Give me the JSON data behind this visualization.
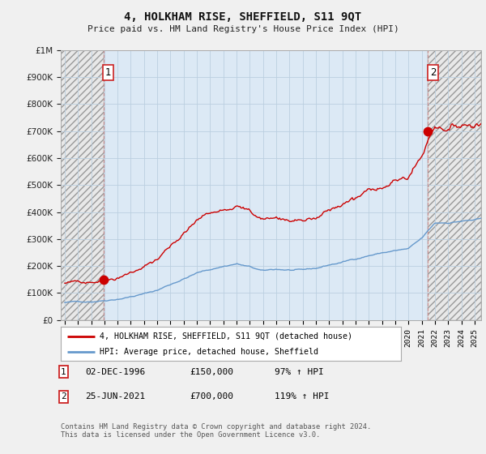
{
  "title": "4, HOLKHAM RISE, SHEFFIELD, S11 9QT",
  "subtitle": "Price paid vs. HM Land Registry's House Price Index (HPI)",
  "legend_line1": "4, HOLKHAM RISE, SHEFFIELD, S11 9QT (detached house)",
  "legend_line2": "HPI: Average price, detached house, Sheffield",
  "sale1_label": "1",
  "sale1_date": "02-DEC-1996",
  "sale1_price": "£150,000",
  "sale1_hpi": "97% ↑ HPI",
  "sale1_year": 1996.92,
  "sale1_value": 150000,
  "sale2_label": "2",
  "sale2_date": "25-JUN-2021",
  "sale2_price": "£700,000",
  "sale2_hpi": "119% ↑ HPI",
  "sale2_year": 2021.48,
  "sale2_value": 700000,
  "footer": "Contains HM Land Registry data © Crown copyright and database right 2024.\nThis data is licensed under the Open Government Licence v3.0.",
  "red_color": "#cc0000",
  "blue_color": "#6699cc",
  "plot_bg_color": "#dce9f5",
  "hatch_bg_color": "#e8e8e8",
  "background_color": "#f0f0f0",
  "ylim": [
    0,
    1000000
  ],
  "xlim_start": 1993.7,
  "xlim_end": 2025.5,
  "ytick_step": 100000,
  "grid_color": "#bbcfe0",
  "spine_color": "#aaaaaa"
}
